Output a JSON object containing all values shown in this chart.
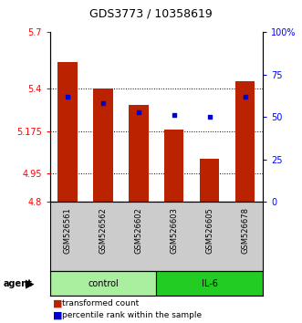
{
  "title": "GDS3773 / 10358619",
  "samples": [
    "GSM526561",
    "GSM526562",
    "GSM526602",
    "GSM526603",
    "GSM526605",
    "GSM526678"
  ],
  "bar_values": [
    5.54,
    5.4,
    5.315,
    5.185,
    5.03,
    5.44
  ],
  "percentile_values": [
    62,
    58,
    53,
    51,
    50,
    62
  ],
  "groups": [
    {
      "label": "control",
      "indices": [
        0,
        1,
        2
      ],
      "color": "#90EE90"
    },
    {
      "label": "IL-6",
      "indices": [
        3,
        4,
        5
      ],
      "color": "#00CC00"
    }
  ],
  "ylim_left": [
    4.8,
    5.7
  ],
  "ylim_right": [
    0,
    100
  ],
  "yticks_left": [
    4.8,
    4.95,
    5.175,
    5.4,
    5.7
  ],
  "yticks_right": [
    0,
    25,
    50,
    75,
    100
  ],
  "ytick_labels_left": [
    "4.8",
    "4.95",
    "5.175",
    "5.4",
    "5.7"
  ],
  "ytick_labels_right": [
    "0",
    "25",
    "50",
    "75",
    "100%"
  ],
  "bar_color": "#BB2200",
  "dot_color": "#0000CC",
  "agent_label": "agent",
  "legend_bar_label": "transformed count",
  "legend_dot_label": "percentile rank within the sample",
  "bar_width": 0.55,
  "base_value": 4.8,
  "background_plot": "#FFFFFF",
  "background_label": "#CCCCCC",
  "control_color": "#AAEEA0",
  "il6_color": "#22CC22"
}
